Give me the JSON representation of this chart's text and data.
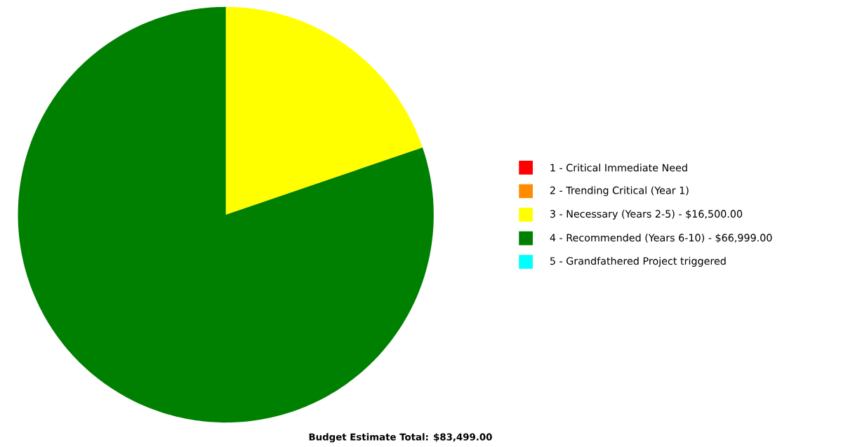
{
  "chart_data": {
    "type": "pie",
    "categories": [
      "1 - Critical Immediate Need",
      "2 - Trending Critical (Year 1)",
      "3 - Necessary  (Years 2-5)  - $16,500.00",
      "4 - Recommended  (Years 6-10)  - $66,999.00",
      "5 - Grandfathered  Project triggered"
    ],
    "values": [
      0,
      0,
      19.76,
      80.24,
      0
    ],
    "colors": [
      "#ff0000",
      "#ff8c00",
      "#ffff00",
      "#008000",
      "#00ffff"
    ],
    "legend": "right",
    "annotations": [
      "**Budget Estimate Total: $83,499.00**"
    ]
  }
}
